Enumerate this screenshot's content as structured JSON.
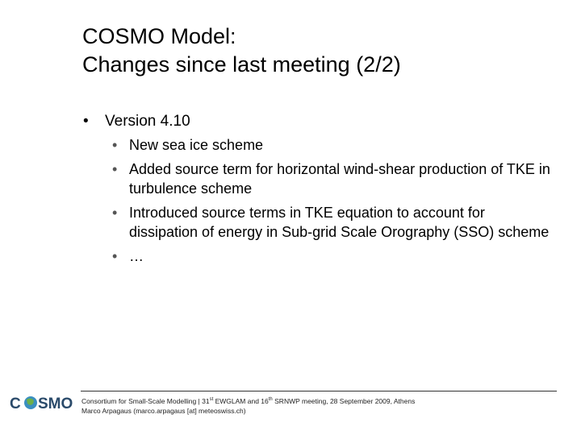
{
  "title": {
    "line1": "COSMO Model:",
    "line2": "Changes since last meeting (2/2)"
  },
  "bullets": [
    {
      "text": "Version 4.10",
      "subitems": [
        "New sea ice scheme",
        "Added source term for horizontal wind-shear production of TKE in turbulence scheme",
        "Introduced source terms in TKE equation to account for dissipation of energy in Sub-grid Scale Orography (SSO) scheme",
        "…"
      ]
    }
  ],
  "footer": {
    "line1": [
      "Consortium for Small-Scale Modelling | 31",
      "st",
      " EWGLAM and 16",
      "th",
      " SRNWP meeting, 28 September 2009, Athens"
    ],
    "line2": "Marco Arpagaus (marco.arpagaus [at] meteoswiss.ch)"
  },
  "logo": {
    "left": "C",
    "right": "SMO"
  }
}
